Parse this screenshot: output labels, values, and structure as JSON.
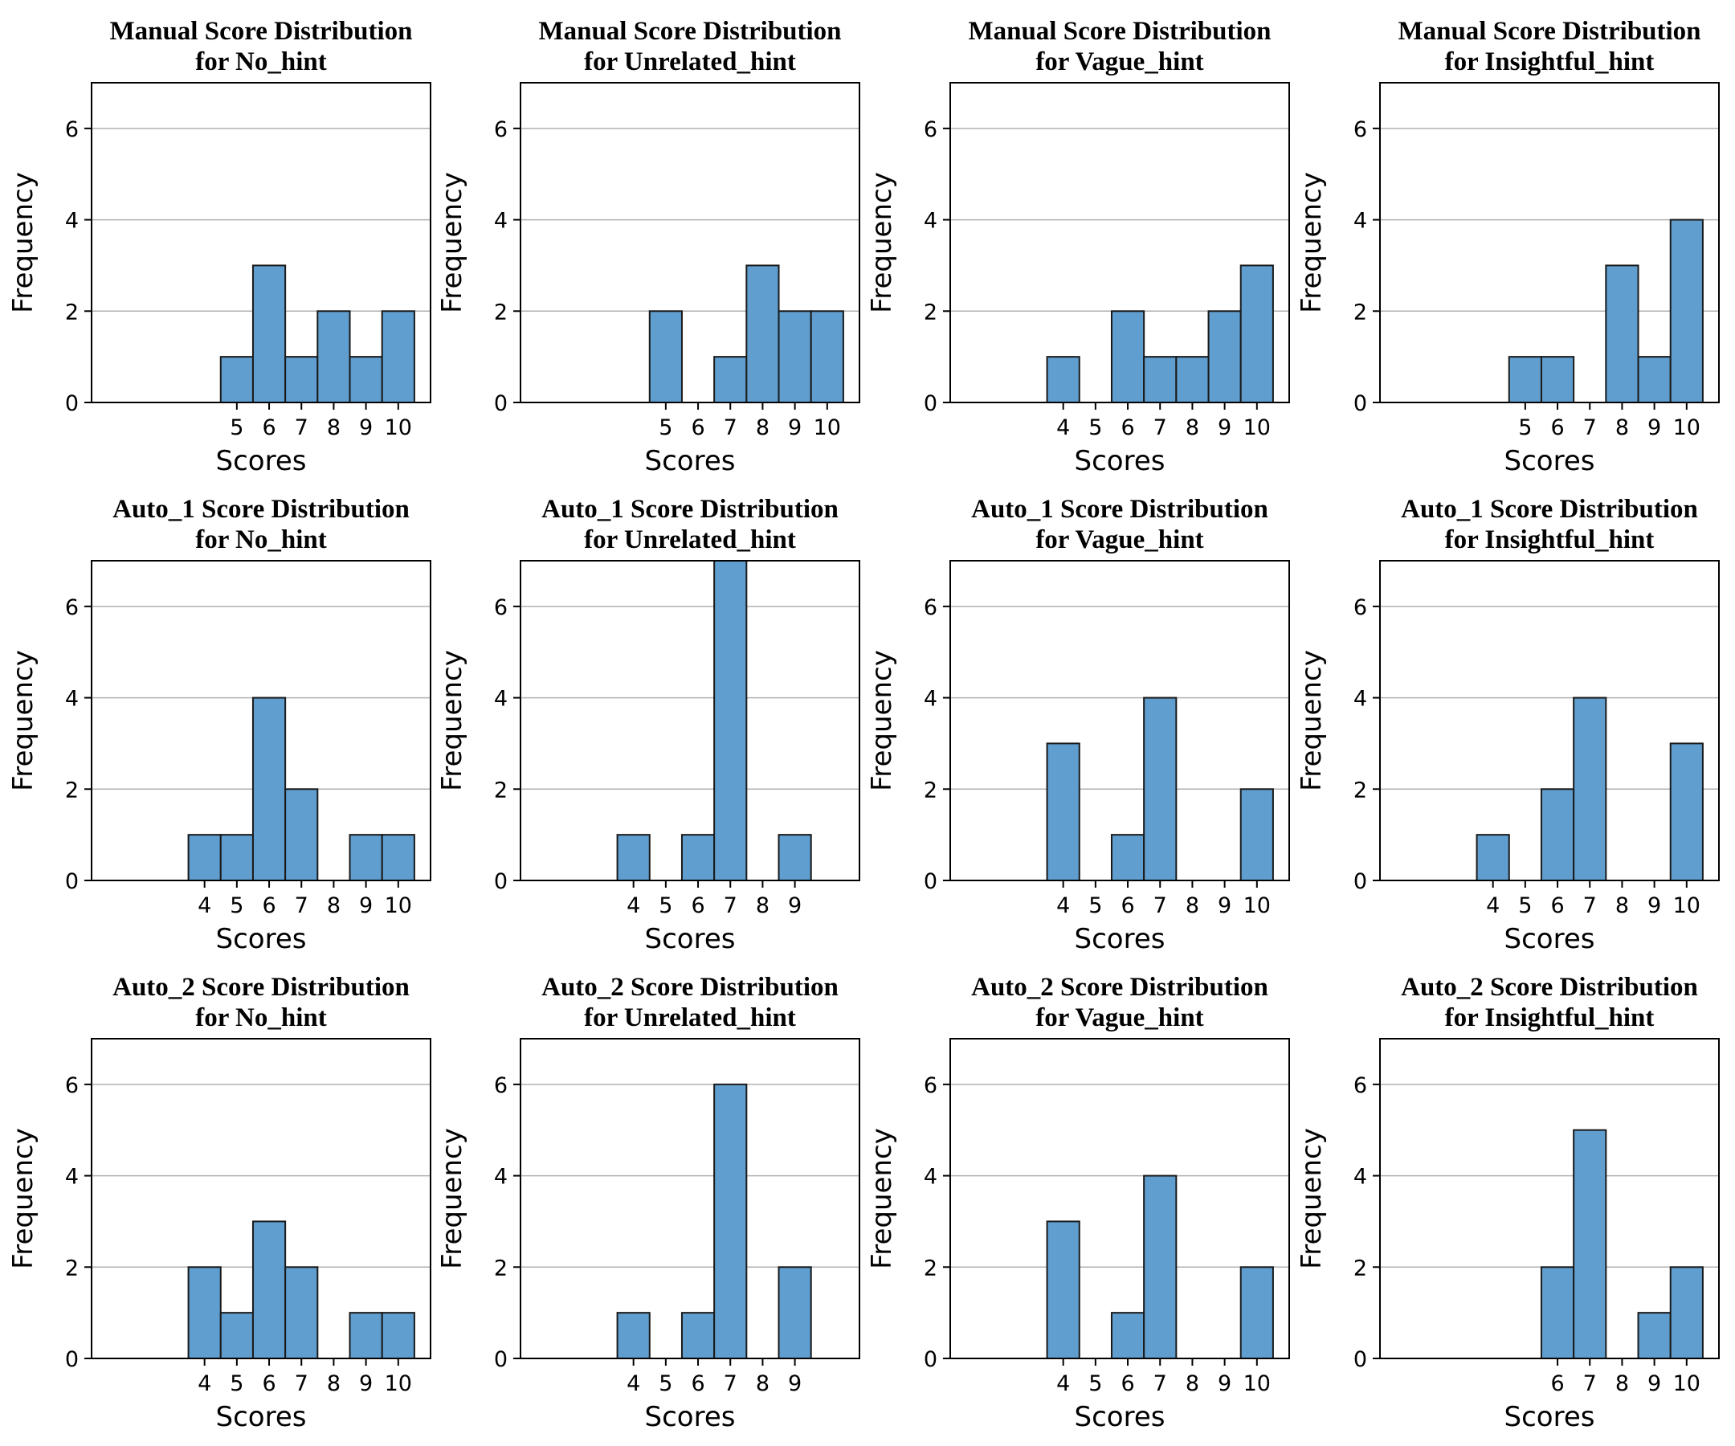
{
  "style": {
    "bar_color": "#5f9ecf",
    "bar_edge": "#1a1a1a",
    "grid_color": "#b0b0b0"
  },
  "chart_data": [
    {
      "type": "bar",
      "title": [
        "Manual Score Distribution",
        "for No_hint"
      ],
      "xlabel": "Scores",
      "ylabel": "Frequency",
      "ylim": [
        0,
        7
      ],
      "xlim": [
        0.5,
        11
      ],
      "yticks": [
        0,
        2,
        4,
        6
      ],
      "grid": "horizontal",
      "xticks": [
        5,
        6,
        7,
        8,
        9,
        10
      ],
      "bins": [
        5,
        6,
        7,
        8,
        9,
        10
      ],
      "values": [
        1,
        3,
        1,
        2,
        1,
        2
      ]
    },
    {
      "type": "bar",
      "title": [
        "Manual Score Distribution",
        "for Unrelated_hint"
      ],
      "xlabel": "Scores",
      "ylabel": "Frequency",
      "ylim": [
        0,
        7
      ],
      "xlim": [
        0.5,
        11
      ],
      "yticks": [
        0,
        2,
        4,
        6
      ],
      "grid": "horizontal",
      "xticks": [
        5,
        6,
        7,
        8,
        9,
        10
      ],
      "bins": [
        5,
        7,
        8,
        9,
        10
      ],
      "values": [
        2,
        1,
        3,
        2,
        2
      ]
    },
    {
      "type": "bar",
      "title": [
        "Manual Score Distribution",
        "for Vague_hint"
      ],
      "xlabel": "Scores",
      "ylabel": "Frequency",
      "ylim": [
        0,
        7
      ],
      "xlim": [
        0.5,
        11
      ],
      "yticks": [
        0,
        2,
        4,
        6
      ],
      "grid": "horizontal",
      "xticks": [
        4,
        5,
        6,
        7,
        8,
        9,
        10
      ],
      "bins": [
        4,
        6,
        7,
        8,
        9,
        10
      ],
      "values": [
        1,
        2,
        1,
        1,
        2,
        3
      ]
    },
    {
      "type": "bar",
      "title": [
        "Manual Score Distribution",
        "for Insightful_hint"
      ],
      "xlabel": "Scores",
      "ylabel": "Frequency",
      "ylim": [
        0,
        7
      ],
      "xlim": [
        0.5,
        11
      ],
      "yticks": [
        0,
        2,
        4,
        6
      ],
      "grid": "horizontal",
      "xticks": [
        5,
        6,
        7,
        8,
        9,
        10
      ],
      "bins": [
        5,
        6,
        8,
        9,
        10
      ],
      "values": [
        1,
        1,
        3,
        1,
        4
      ]
    },
    {
      "type": "bar",
      "title": [
        "Auto_1 Score Distribution",
        "for No_hint"
      ],
      "xlabel": "Scores",
      "ylabel": "Frequency",
      "ylim": [
        0,
        7
      ],
      "xlim": [
        0.5,
        11
      ],
      "yticks": [
        0,
        2,
        4,
        6
      ],
      "grid": "horizontal",
      "xticks": [
        4,
        5,
        6,
        7,
        8,
        9,
        10
      ],
      "bins": [
        4,
        5,
        6,
        7,
        9,
        10
      ],
      "values": [
        1,
        1,
        4,
        2,
        1,
        1
      ]
    },
    {
      "type": "bar",
      "title": [
        "Auto_1 Score Distribution",
        "for Unrelated_hint"
      ],
      "xlabel": "Scores",
      "ylabel": "Frequency",
      "ylim": [
        0,
        7
      ],
      "xlim": [
        0.5,
        11
      ],
      "yticks": [
        0,
        2,
        4,
        6
      ],
      "grid": "horizontal",
      "xticks": [
        4,
        5,
        6,
        7,
        8,
        9
      ],
      "bins": [
        4,
        6,
        7,
        9
      ],
      "values": [
        1,
        1,
        7,
        1
      ]
    },
    {
      "type": "bar",
      "title": [
        "Auto_1 Score Distribution",
        "for Vague_hint"
      ],
      "xlabel": "Scores",
      "ylabel": "Frequency",
      "ylim": [
        0,
        7
      ],
      "xlim": [
        0.5,
        11
      ],
      "yticks": [
        0,
        2,
        4,
        6
      ],
      "grid": "horizontal",
      "xticks": [
        4,
        5,
        6,
        7,
        8,
        9,
        10
      ],
      "bins": [
        4,
        6,
        7,
        10
      ],
      "values": [
        3,
        1,
        4,
        2
      ]
    },
    {
      "type": "bar",
      "title": [
        "Auto_1 Score Distribution",
        "for Insightful_hint"
      ],
      "xlabel": "Scores",
      "ylabel": "Frequency",
      "ylim": [
        0,
        7
      ],
      "xlim": [
        0.5,
        11
      ],
      "yticks": [
        0,
        2,
        4,
        6
      ],
      "grid": "horizontal",
      "xticks": [
        4,
        5,
        6,
        7,
        8,
        9,
        10
      ],
      "bins": [
        4,
        6,
        7,
        10
      ],
      "values": [
        1,
        2,
        4,
        3
      ]
    },
    {
      "type": "bar",
      "title": [
        "Auto_2 Score Distribution",
        "for No_hint"
      ],
      "xlabel": "Scores",
      "ylabel": "Frequency",
      "ylim": [
        0,
        7
      ],
      "xlim": [
        0.5,
        11
      ],
      "yticks": [
        0,
        2,
        4,
        6
      ],
      "grid": "horizontal",
      "xticks": [
        4,
        5,
        6,
        7,
        8,
        9,
        10
      ],
      "bins": [
        4,
        5,
        6,
        7,
        9,
        10
      ],
      "values": [
        2,
        1,
        3,
        2,
        1,
        1
      ]
    },
    {
      "type": "bar",
      "title": [
        "Auto_2 Score Distribution",
        "for Unrelated_hint"
      ],
      "xlabel": "Scores",
      "ylabel": "Frequency",
      "ylim": [
        0,
        7
      ],
      "xlim": [
        0.5,
        11
      ],
      "yticks": [
        0,
        2,
        4,
        6
      ],
      "grid": "horizontal",
      "xticks": [
        4,
        5,
        6,
        7,
        8,
        9
      ],
      "bins": [
        4,
        6,
        7,
        9
      ],
      "values": [
        1,
        1,
        6,
        2
      ]
    },
    {
      "type": "bar",
      "title": [
        "Auto_2 Score Distribution",
        "for Vague_hint"
      ],
      "xlabel": "Scores",
      "ylabel": "Frequency",
      "ylim": [
        0,
        7
      ],
      "xlim": [
        0.5,
        11
      ],
      "yticks": [
        0,
        2,
        4,
        6
      ],
      "grid": "horizontal",
      "xticks": [
        4,
        5,
        6,
        7,
        8,
        9,
        10
      ],
      "bins": [
        4,
        6,
        7,
        10
      ],
      "values": [
        3,
        1,
        4,
        2
      ]
    },
    {
      "type": "bar",
      "title": [
        "Auto_2 Score Distribution",
        "for Insightful_hint"
      ],
      "xlabel": "Scores",
      "ylabel": "Frequency",
      "ylim": [
        0,
        7
      ],
      "xlim": [
        0.5,
        11
      ],
      "yticks": [
        0,
        2,
        4,
        6
      ],
      "grid": "horizontal",
      "xticks": [
        6,
        7,
        8,
        9,
        10
      ],
      "bins": [
        6,
        7,
        9,
        10
      ],
      "values": [
        2,
        5,
        1,
        2
      ]
    }
  ]
}
